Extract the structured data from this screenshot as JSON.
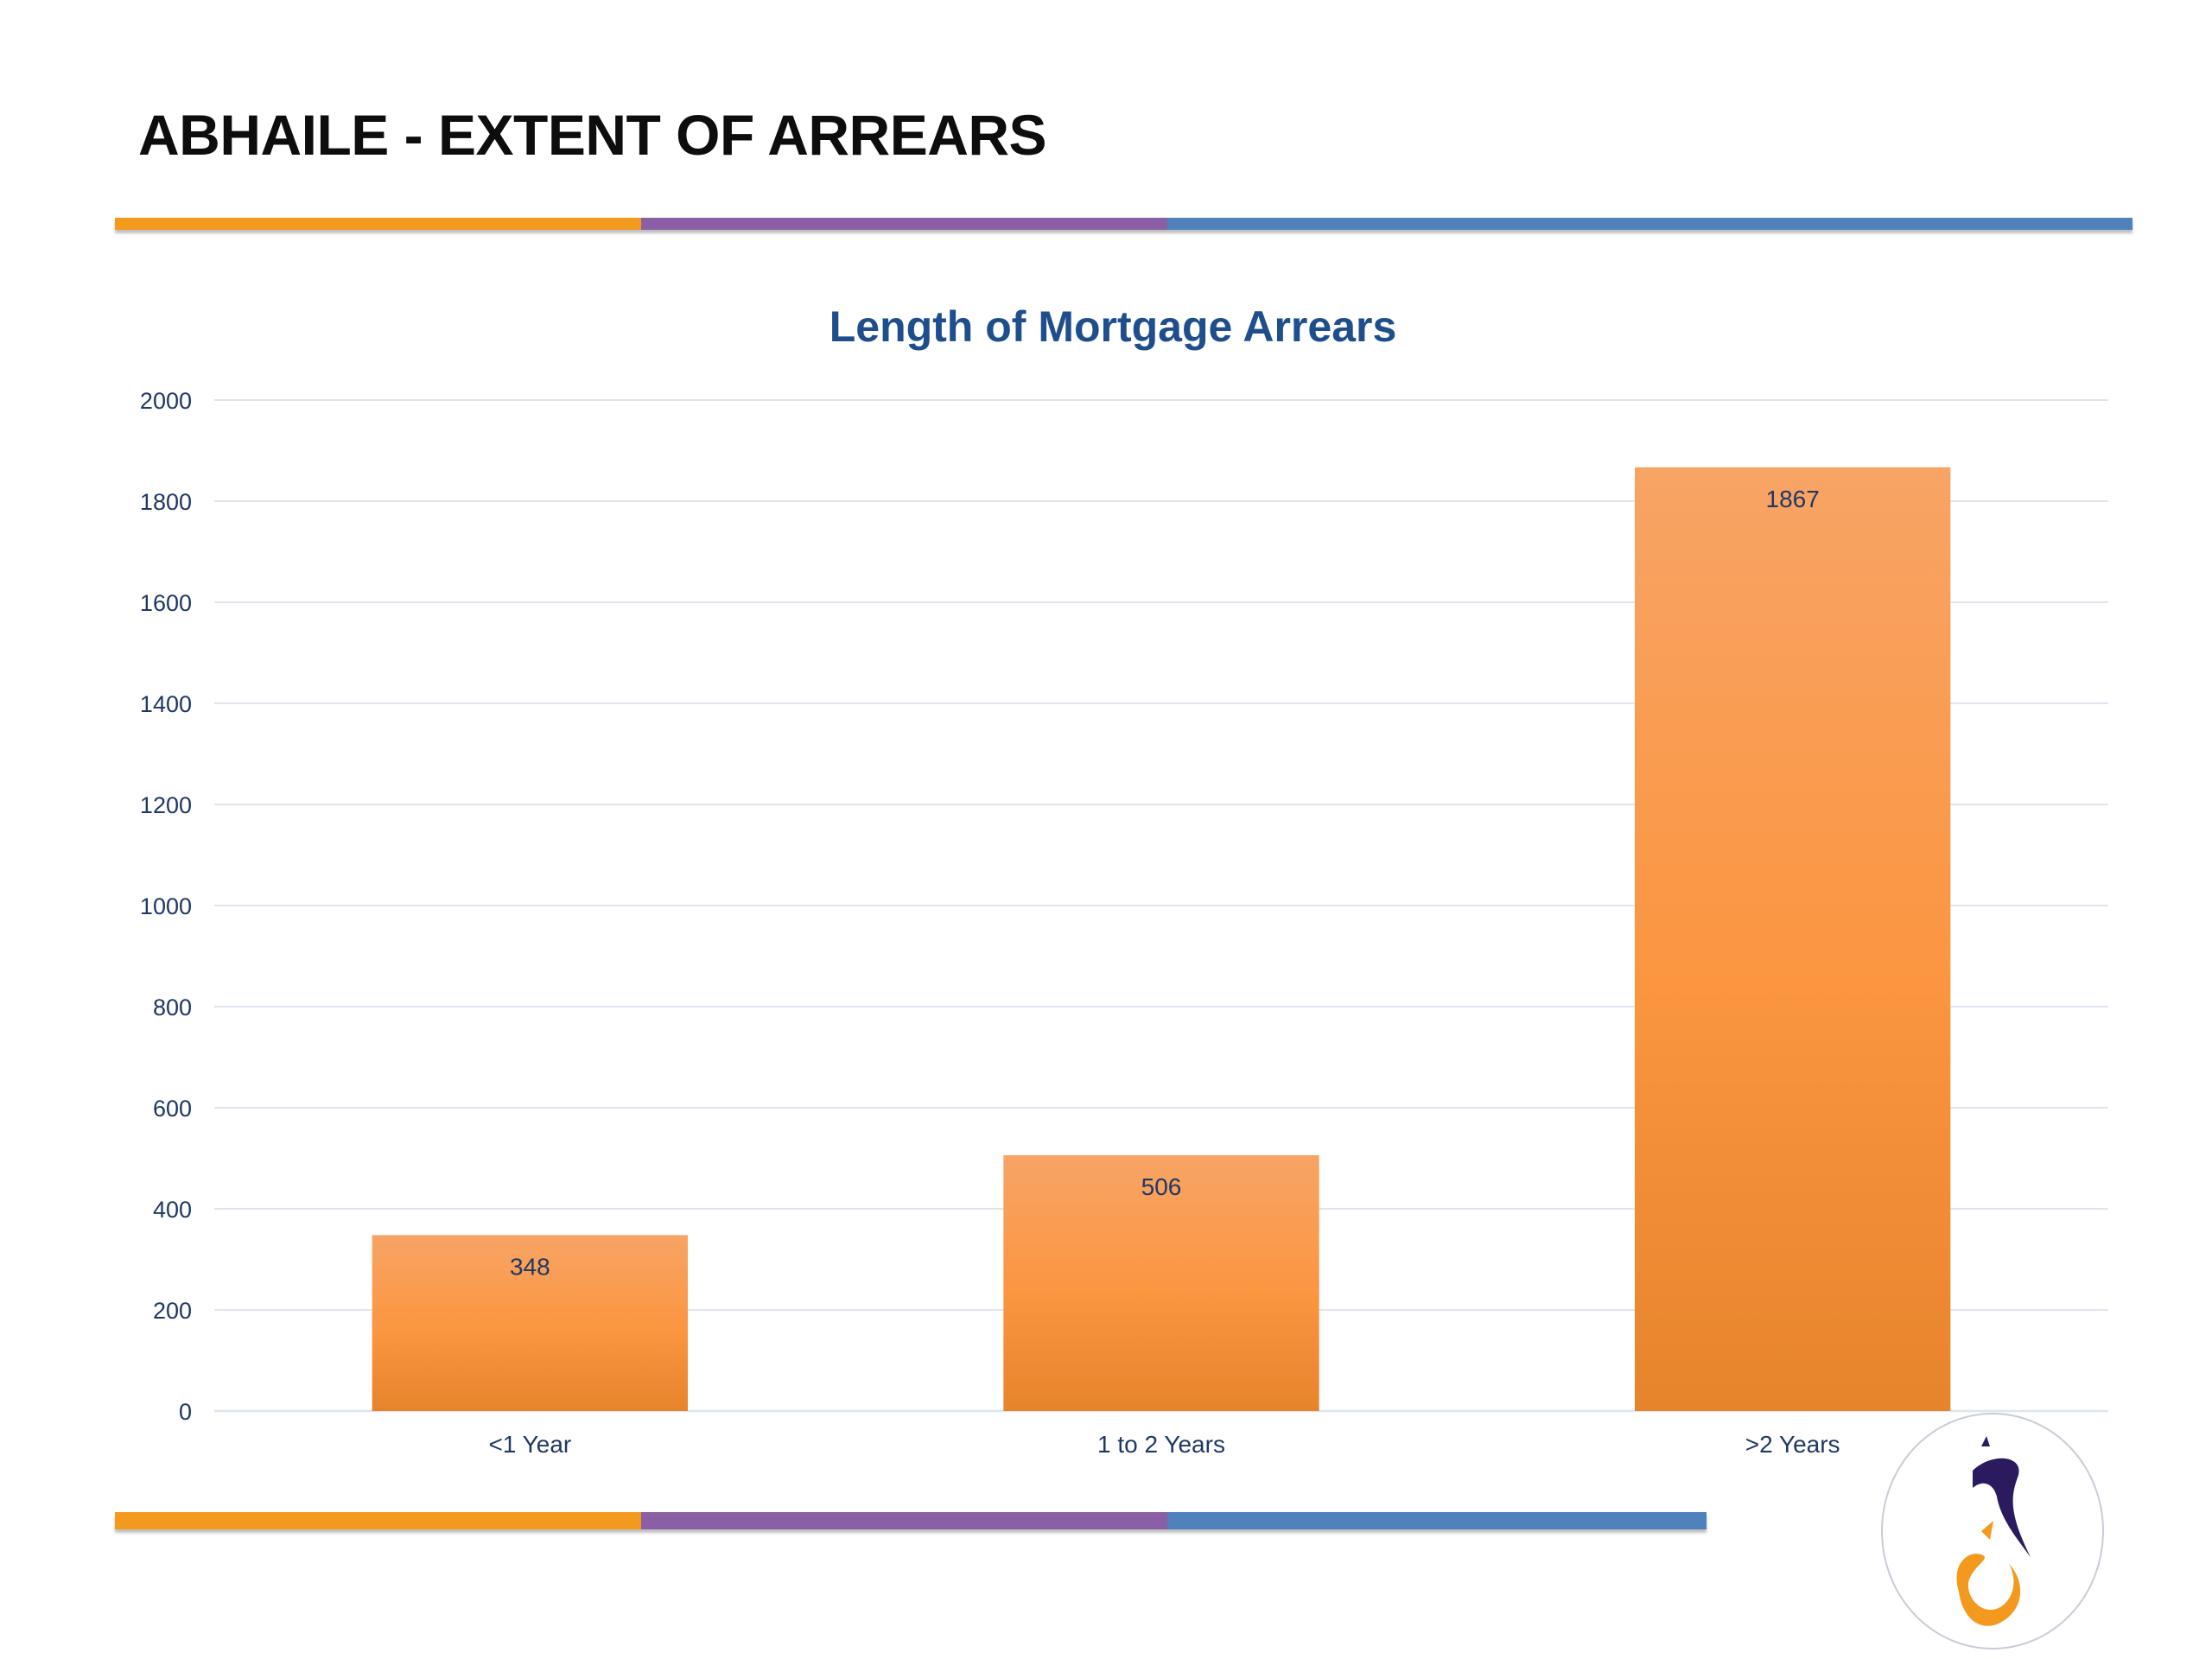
{
  "slide": {
    "title": "ABHAILE - EXTENT OF ARREARS",
    "rule_colors": [
      "#f39a1e",
      "#8a5fa6",
      "#4f81bd"
    ]
  },
  "chart_data": {
    "type": "bar",
    "title": "Length of Mortgage Arrears",
    "categories": [
      "<1 Year",
      "1 to 2 Years",
      ">2 Years"
    ],
    "values": [
      348,
      506,
      1867
    ],
    "ylim": [
      0,
      2000
    ],
    "yticks": [
      0,
      200,
      400,
      600,
      800,
      1000,
      1200,
      1400,
      1600,
      1800,
      2000
    ],
    "grid": true,
    "data_labels": true,
    "bar_color_top": "#f8a465",
    "bar_color_mid": "#fb9540",
    "bar_color_bottom": "#e6842c",
    "gridline_color": "#dfe5ee",
    "text_color": "#1f3864",
    "title_color": "#1f4e8c"
  },
  "logo": {
    "icon": "swan-figure-logo-icon",
    "colors": [
      "#2b1a5e",
      "#f39a1e"
    ]
  }
}
